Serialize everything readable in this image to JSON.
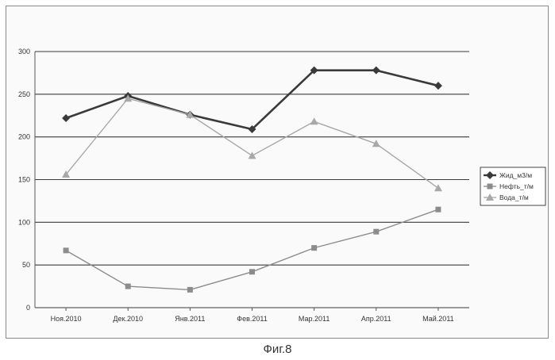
{
  "chart_data": {
    "type": "line",
    "categories": [
      "Ноя.2010",
      "Дек.2010",
      "Янв.2011",
      "Фев.2011",
      "Мар.2011",
      "Апр.2011",
      "Май.2011"
    ],
    "ylim": [
      0,
      300
    ],
    "yticks": [
      0,
      50,
      100,
      150,
      200,
      250,
      300
    ],
    "grid": true,
    "legend_position": "right",
    "series": [
      {
        "name": "Жид_м3/м",
        "marker": "diamond",
        "color": "#3a3a3a",
        "values": [
          222,
          248,
          226,
          209,
          278,
          278,
          260
        ]
      },
      {
        "name": "Нефть_т/м",
        "marker": "square",
        "color": "#8c8c8c",
        "values": [
          67,
          25,
          21,
          42,
          70,
          89,
          115
        ]
      },
      {
        "name": "Вода_т/м",
        "marker": "triangle",
        "color": "#a8a8a8",
        "values": [
          156,
          245,
          226,
          178,
          218,
          192,
          140
        ]
      }
    ]
  },
  "caption": "Фиг.8"
}
